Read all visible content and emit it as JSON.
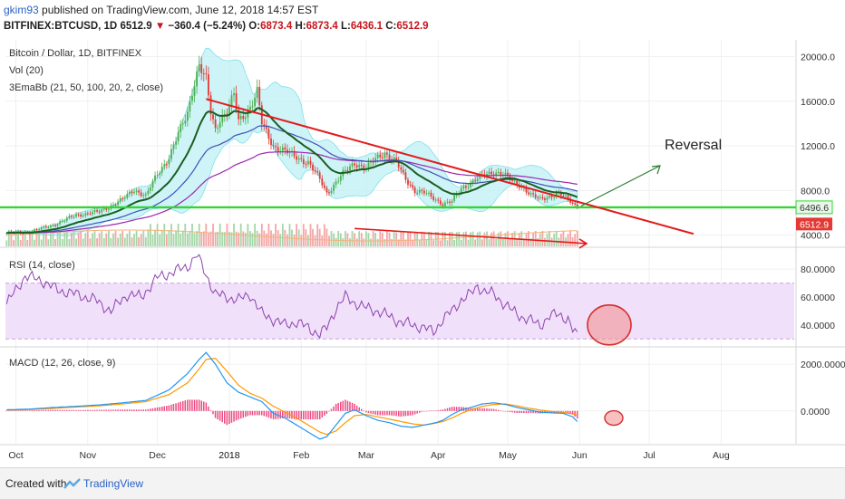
{
  "header": {
    "user": "gkim93",
    "published": "published on TradingView.com, June 12, 2018 14:57 EST",
    "symbol": "BITFINEX:BTCUSD, 1D",
    "last": "6512.9",
    "change": "−360.4 (−5.24%)",
    "ohlc": {
      "o_label": "O:",
      "o": "6873.4",
      "h_label": "H:",
      "h": "6873.4",
      "l_label": "L:",
      "l": "6436.1",
      "c_label": "C:",
      "c": "6512.9"
    }
  },
  "panes": {
    "price": {
      "title": "Bitcoin / Dollar, 1D, BITFINEX",
      "vol": "Vol (20)",
      "ema": "3EmaBb (21, 50, 100, 20, 2, close)"
    },
    "rsi": {
      "title": "RSI (14, close)"
    },
    "macd": {
      "title": "MACD (12, 26, close, 9)"
    }
  },
  "annotation": {
    "reversal": "Reversal"
  },
  "footer": {
    "created": "Created with",
    "brand": "TradingView"
  },
  "colors": {
    "up": "#4caf50",
    "down": "#e53935",
    "trend": "#e21b1b",
    "support": "#31d631",
    "bb": "#bdf0f5",
    "ema_green": "#1b5e20",
    "ema_blue": "#3f51b5",
    "ema_purple": "#9c27b0",
    "rsi": "#8e44ad",
    "rsi_band": "#f0e0fa",
    "macd": "#2196f3",
    "signal": "#ff9800",
    "hist": "#e91e63"
  },
  "chart_data": {
    "type": "candlestick",
    "x_axis": {
      "ticks": [
        "Oct",
        "Nov",
        "Dec",
        "2018",
        "Feb",
        "Mar",
        "Apr",
        "May",
        "Jun",
        "Jul",
        "Aug"
      ]
    },
    "price": {
      "y_ticks": [
        4000.0,
        8000.0,
        12000.0,
        16000.0,
        20000.0
      ],
      "y_tick_labels": [
        "4000.0",
        "8000.0",
        "12000.0",
        "16000.0",
        "20000.0"
      ],
      "ylim": [
        3000,
        21500
      ],
      "support_level": 6496.6,
      "support_label": "6496.6",
      "last_price_label": "6512.9",
      "close_path": [
        [
          0,
          4200
        ],
        [
          10,
          4300
        ],
        [
          20,
          4900
        ],
        [
          30,
          5800
        ],
        [
          40,
          6100
        ],
        [
          50,
          7200
        ],
        [
          55,
          8100
        ],
        [
          60,
          7500
        ],
        [
          65,
          9500
        ],
        [
          70,
          11000
        ],
        [
          75,
          13500
        ],
        [
          78,
          15000
        ],
        [
          80,
          17000
        ],
        [
          83,
          19200
        ],
        [
          86,
          17800
        ],
        [
          88,
          15000
        ],
        [
          90,
          13500
        ],
        [
          92,
          14500
        ],
        [
          95,
          15000
        ],
        [
          98,
          16500
        ],
        [
          100,
          14200
        ],
        [
          105,
          15500
        ],
        [
          108,
          16800
        ],
        [
          110,
          14000
        ],
        [
          115,
          12000
        ],
        [
          120,
          11500
        ],
        [
          125,
          11000
        ],
        [
          130,
          10500
        ],
        [
          135,
          9000
        ],
        [
          138,
          7800
        ],
        [
          140,
          8200
        ],
        [
          145,
          9500
        ],
        [
          150,
          10500
        ],
        [
          155,
          10000
        ],
        [
          160,
          11000
        ],
        [
          163,
          11400
        ],
        [
          168,
          10500
        ],
        [
          172,
          9000
        ],
        [
          176,
          8000
        ],
        [
          180,
          7800
        ],
        [
          185,
          7200
        ],
        [
          188,
          6800
        ],
        [
          192,
          7000
        ],
        [
          196,
          8200
        ],
        [
          200,
          8700
        ],
        [
          205,
          9300
        ],
        [
          210,
          9700
        ],
        [
          214,
          9500
        ],
        [
          218,
          8800
        ],
        [
          222,
          8400
        ],
        [
          226,
          7600
        ],
        [
          230,
          7200
        ],
        [
          234,
          7500
        ],
        [
          238,
          7700
        ],
        [
          242,
          7200
        ],
        [
          244,
          6900
        ],
        [
          246,
          6512
        ]
      ],
      "trendline_points": [
        [
          86,
          16200
        ],
        [
          246,
          7000
        ]
      ],
      "volume_trendline_points": [
        [
          150,
          4600
        ],
        [
          250,
          3250
        ]
      ]
    },
    "rsi": {
      "y_ticks": [
        40.0,
        60.0,
        80.0
      ],
      "y_tick_labels": [
        "40.0000",
        "60.0000",
        "80.0000"
      ],
      "ylim": [
        25,
        95
      ],
      "band": [
        30,
        70
      ],
      "values_path": [
        [
          0,
          55
        ],
        [
          8,
          75
        ],
        [
          15,
          72
        ],
        [
          22,
          65
        ],
        [
          30,
          62
        ],
        [
          38,
          58
        ],
        [
          45,
          50
        ],
        [
          52,
          62
        ],
        [
          58,
          60
        ],
        [
          65,
          74
        ],
        [
          72,
          78
        ],
        [
          78,
          82
        ],
        [
          82,
          90
        ],
        [
          86,
          76
        ],
        [
          90,
          62
        ],
        [
          95,
          60
        ],
        [
          100,
          58
        ],
        [
          105,
          62
        ],
        [
          110,
          48
        ],
        [
          115,
          44
        ],
        [
          120,
          40
        ],
        [
          125,
          42
        ],
        [
          130,
          38
        ],
        [
          135,
          33
        ],
        [
          138,
          38
        ],
        [
          142,
          52
        ],
        [
          146,
          60
        ],
        [
          150,
          56
        ],
        [
          155,
          52
        ],
        [
          160,
          50
        ],
        [
          165,
          46
        ],
        [
          170,
          42
        ],
        [
          175,
          40
        ],
        [
          180,
          38
        ],
        [
          184,
          35
        ],
        [
          188,
          44
        ],
        [
          192,
          50
        ],
        [
          196,
          58
        ],
        [
          200,
          62
        ],
        [
          203,
          68
        ],
        [
          206,
          64
        ],
        [
          210,
          62
        ],
        [
          214,
          56
        ],
        [
          218,
          50
        ],
        [
          222,
          46
        ],
        [
          226,
          43
        ],
        [
          230,
          40
        ],
        [
          234,
          46
        ],
        [
          238,
          48
        ],
        [
          242,
          44
        ],
        [
          244,
          36
        ],
        [
          246,
          32
        ]
      ]
    },
    "macd": {
      "y_ticks": [
        0.0,
        2000.0
      ],
      "y_tick_labels": [
        "0.0000",
        "2000.0000"
      ],
      "ylim": [
        -1400,
        2700
      ],
      "macd_path": [
        [
          0,
          50
        ],
        [
          10,
          80
        ],
        [
          20,
          150
        ],
        [
          30,
          200
        ],
        [
          40,
          260
        ],
        [
          50,
          350
        ],
        [
          60,
          450
        ],
        [
          70,
          900
        ],
        [
          78,
          1600
        ],
        [
          83,
          2200
        ],
        [
          86,
          2500
        ],
        [
          90,
          2000
        ],
        [
          95,
          1200
        ],
        [
          100,
          800
        ],
        [
          105,
          600
        ],
        [
          110,
          400
        ],
        [
          115,
          -100
        ],
        [
          120,
          -300
        ],
        [
          125,
          -600
        ],
        [
          130,
          -900
        ],
        [
          135,
          -1200
        ],
        [
          138,
          -1100
        ],
        [
          142,
          -600
        ],
        [
          146,
          -100
        ],
        [
          150,
          50
        ],
        [
          155,
          -200
        ],
        [
          160,
          -400
        ],
        [
          165,
          -500
        ],
        [
          170,
          -650
        ],
        [
          175,
          -700
        ],
        [
          180,
          -600
        ],
        [
          185,
          -500
        ],
        [
          188,
          -400
        ],
        [
          192,
          -150
        ],
        [
          196,
          50
        ],
        [
          200,
          150
        ],
        [
          205,
          300
        ],
        [
          210,
          350
        ],
        [
          215,
          280
        ],
        [
          220,
          150
        ],
        [
          225,
          50
        ],
        [
          230,
          -50
        ],
        [
          235,
          -80
        ],
        [
          240,
          -100
        ],
        [
          244,
          -250
        ],
        [
          246,
          -450
        ]
      ],
      "signal_path": [
        [
          0,
          40
        ],
        [
          10,
          60
        ],
        [
          20,
          110
        ],
        [
          30,
          170
        ],
        [
          40,
          220
        ],
        [
          50,
          300
        ],
        [
          60,
          400
        ],
        [
          70,
          700
        ],
        [
          78,
          1200
        ],
        [
          83,
          1800
        ],
        [
          86,
          2200
        ],
        [
          90,
          2250
        ],
        [
          95,
          1700
        ],
        [
          100,
          1100
        ],
        [
          105,
          750
        ],
        [
          110,
          550
        ],
        [
          115,
          200
        ],
        [
          120,
          -50
        ],
        [
          125,
          -300
        ],
        [
          130,
          -600
        ],
        [
          135,
          -900
        ],
        [
          138,
          -1000
        ],
        [
          142,
          -850
        ],
        [
          146,
          -500
        ],
        [
          150,
          -200
        ],
        [
          155,
          -150
        ],
        [
          160,
          -250
        ],
        [
          165,
          -350
        ],
        [
          170,
          -450
        ],
        [
          175,
          -550
        ],
        [
          180,
          -600
        ],
        [
          185,
          -520
        ],
        [
          188,
          -450
        ],
        [
          192,
          -300
        ],
        [
          196,
          -100
        ],
        [
          200,
          50
        ],
        [
          205,
          200
        ],
        [
          210,
          280
        ],
        [
          215,
          300
        ],
        [
          220,
          220
        ],
        [
          225,
          120
        ],
        [
          230,
          40
        ],
        [
          235,
          -20
        ],
        [
          240,
          -70
        ],
        [
          244,
          -120
        ],
        [
          246,
          -180
        ]
      ]
    }
  }
}
